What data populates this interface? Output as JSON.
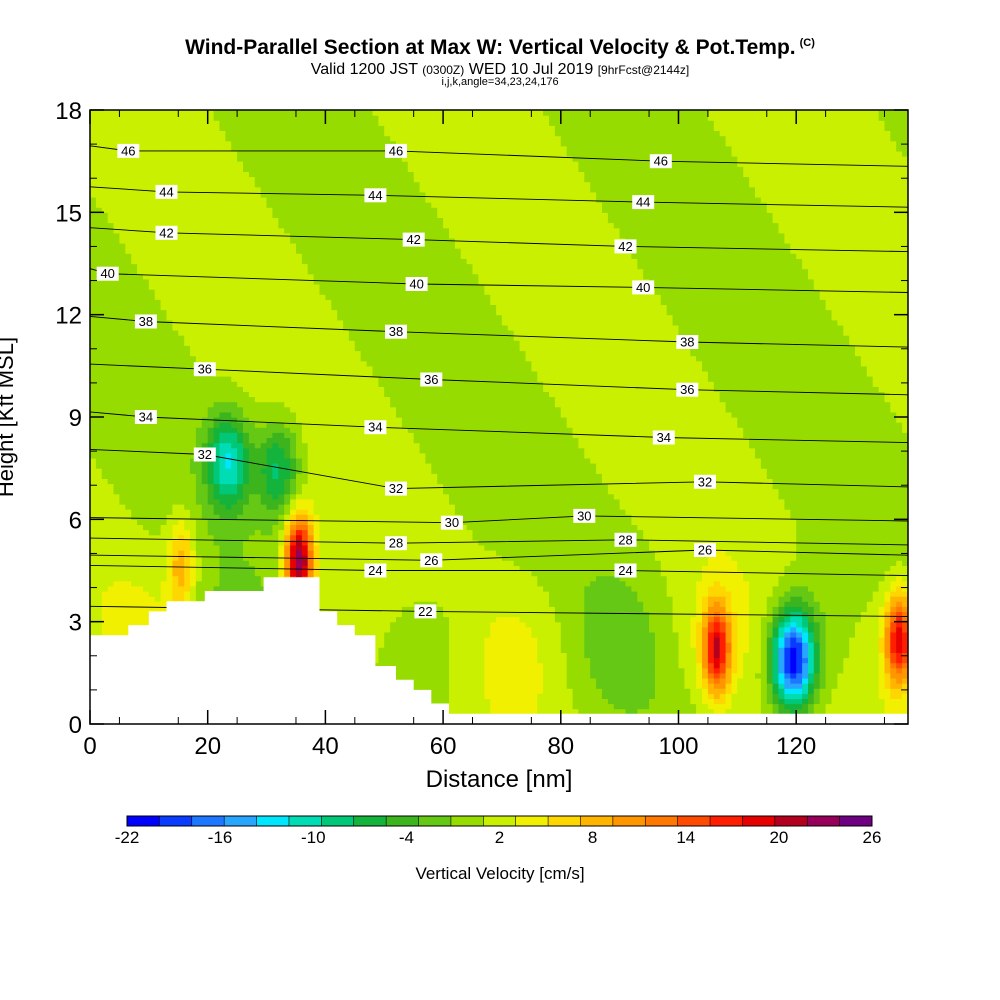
{
  "header": {
    "title": "Wind-Parallel Section at Max W: Vertical Velocity & Pot.Temp.",
    "title_suffix": "(C)",
    "valid_main": "Valid 1200 JST",
    "valid_small": "(0300Z)",
    "valid_date": "WED 10 Jul 2019",
    "valid_fcst": "[9hrFcst@2144z]",
    "indices": "i,j,k,angle=34,23,24,176"
  },
  "colorbar": {
    "label": "Vertical Velocity [cm/s]",
    "tick_labels": [
      "-22",
      "-16",
      "-10",
      "-4",
      "2",
      "8",
      "14",
      "20",
      "26"
    ],
    "colors": [
      "#0000ff",
      "#0a3cff",
      "#1e78ff",
      "#28a5ff",
      "#00e6ff",
      "#00dcb4",
      "#00c878",
      "#14b43c",
      "#3cb41e",
      "#64c814",
      "#96dc00",
      "#c8f000",
      "#f0f000",
      "#ffd700",
      "#ffb400",
      "#ff9600",
      "#ff7800",
      "#ff4b00",
      "#ff1e00",
      "#e60000",
      "#b4001e",
      "#96005a",
      "#6e0082"
    ]
  },
  "chart_data": {
    "type": "heatmap",
    "title": "Wind-Parallel Section at Max W: Vertical Velocity & Pot.Temp.",
    "xlabel": "Distance [nm]",
    "ylabel": "Height [Kft MSL]",
    "xlim": [
      0,
      139
    ],
    "ylim": [
      0,
      18
    ],
    "x_ticks": [
      "0",
      "20",
      "40",
      "60",
      "80",
      "100",
      "120"
    ],
    "y_ticks": [
      "0",
      "3",
      "6",
      "9",
      "12",
      "15",
      "18"
    ],
    "fill_variable": "Vertical Velocity [cm/s]",
    "fill_levels": [
      -22,
      -16,
      -10,
      -4,
      2,
      8,
      14,
      20,
      26
    ],
    "contour_variable": "Potential Temperature (C)",
    "contour_labels": [
      {
        "text": "46",
        "x": 6.5,
        "y": 16.8
      },
      {
        "text": "46",
        "x": 52,
        "y": 16.8
      },
      {
        "text": "46",
        "x": 97,
        "y": 16.5
      },
      {
        "text": "44",
        "x": 13,
        "y": 15.6
      },
      {
        "text": "44",
        "x": 48.5,
        "y": 15.5
      },
      {
        "text": "44",
        "x": 94,
        "y": 15.3
      },
      {
        "text": "42",
        "x": 13,
        "y": 14.4
      },
      {
        "text": "42",
        "x": 55,
        "y": 14.2
      },
      {
        "text": "42",
        "x": 91,
        "y": 14.0
      },
      {
        "text": "40",
        "x": 3,
        "y": 13.2
      },
      {
        "text": "40",
        "x": 55.5,
        "y": 12.9
      },
      {
        "text": "40",
        "x": 94,
        "y": 12.8
      },
      {
        "text": "38",
        "x": 9.5,
        "y": 11.8
      },
      {
        "text": "38",
        "x": 52,
        "y": 11.5
      },
      {
        "text": "38",
        "x": 101.5,
        "y": 11.2
      },
      {
        "text": "36",
        "x": 19.5,
        "y": 10.4
      },
      {
        "text": "36",
        "x": 58,
        "y": 10.1
      },
      {
        "text": "36",
        "x": 101.5,
        "y": 9.8
      },
      {
        "text": "34",
        "x": 9.5,
        "y": 9.0
      },
      {
        "text": "34",
        "x": 48.5,
        "y": 8.7
      },
      {
        "text": "34",
        "x": 97.5,
        "y": 8.4
      },
      {
        "text": "32",
        "x": 19.5,
        "y": 7.9
      },
      {
        "text": "32",
        "x": 52,
        "y": 6.9
      },
      {
        "text": "32",
        "x": 104.5,
        "y": 7.1
      },
      {
        "text": "30",
        "x": 61.5,
        "y": 5.9
      },
      {
        "text": "30",
        "x": 84,
        "y": 6.1
      },
      {
        "text": "28",
        "x": 52,
        "y": 5.3
      },
      {
        "text": "28",
        "x": 91,
        "y": 5.4
      },
      {
        "text": "26",
        "x": 58,
        "y": 4.8
      },
      {
        "text": "26",
        "x": 104.5,
        "y": 5.1
      },
      {
        "text": "24",
        "x": 48.5,
        "y": 4.5
      },
      {
        "text": "24",
        "x": 91,
        "y": 4.5
      },
      {
        "text": "22",
        "x": 57,
        "y": 3.3
      }
    ],
    "terrain_profile_kft": [
      [
        0,
        2.6
      ],
      [
        6.5,
        2.6
      ],
      [
        6.5,
        2.9
      ],
      [
        10,
        2.9
      ],
      [
        10,
        3.3
      ],
      [
        13,
        3.3
      ],
      [
        13,
        3.6
      ],
      [
        19.5,
        3.6
      ],
      [
        19.5,
        3.9
      ],
      [
        29.5,
        3.9
      ],
      [
        29.5,
        4.3
      ],
      [
        39,
        4.3
      ],
      [
        39,
        3.3
      ],
      [
        42,
        3.3
      ],
      [
        42,
        2.9
      ],
      [
        45,
        2.9
      ],
      [
        45,
        2.6
      ],
      [
        48.5,
        2.6
      ],
      [
        48.5,
        1.7
      ],
      [
        52,
        1.7
      ],
      [
        52,
        1.3
      ],
      [
        55,
        1.3
      ],
      [
        55,
        1.0
      ],
      [
        58,
        1.0
      ],
      [
        58,
        0.6
      ],
      [
        61,
        0.6
      ],
      [
        61,
        0.3
      ],
      [
        139,
        0.3
      ]
    ],
    "features": [
      {
        "kind": "updraft",
        "x": 35.5,
        "y": 4.8,
        "peak_cm_s": 24
      },
      {
        "kind": "updraft",
        "x": 106.5,
        "y": 2.2,
        "peak_cm_s": 18
      },
      {
        "kind": "updraft",
        "x": 137.5,
        "y": 2.5,
        "peak_cm_s": 18
      },
      {
        "kind": "updraft",
        "x": 15.5,
        "y": 4.7,
        "peak_cm_s": 9
      },
      {
        "kind": "downdraft",
        "x": 119.5,
        "y": 1.9,
        "peak_cm_s": -21
      },
      {
        "kind": "downdraft",
        "x": 23.5,
        "y": 7.7,
        "peak_cm_s": -11
      },
      {
        "kind": "downdraft",
        "x": 32,
        "y": 7.5,
        "peak_cm_s": -8
      }
    ]
  }
}
